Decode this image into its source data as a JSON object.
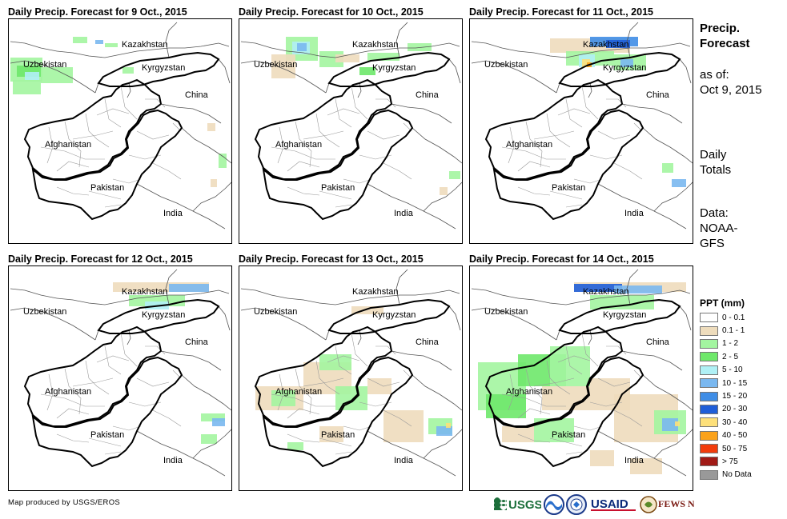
{
  "panels": [
    {
      "title": "Daily Precip. Forecast for 9 Oct., 2015"
    },
    {
      "title": "Daily Precip. Forecast for 10 Oct., 2015"
    },
    {
      "title": "Daily Precip. Forecast for 11 Oct., 2015"
    },
    {
      "title": "Daily Precip. Forecast for 12 Oct., 2015"
    },
    {
      "title": "Daily Precip. Forecast for 13 Oct., 2015"
    },
    {
      "title": "Daily Precip. Forecast for 14 Oct., 2015"
    }
  ],
  "map_labels": {
    "kazakhstan": "Kazakhstan",
    "uzbekistan": "Uzbekistan",
    "kyrgyzstan": "Kyrgyzstan",
    "china": "China",
    "afghanistan": "Afghanistan",
    "pakistan": "Pakistan",
    "india": "India"
  },
  "side_panel": {
    "title_line1": "Precip.",
    "title_line2": "Forecast",
    "asof_line1": "as of:",
    "asof_line2": "Oct 9, 2015",
    "daily_line1": "Daily",
    "daily_line2": "Totals",
    "data_line1": "Data:",
    "data_line2": "NOAA-",
    "data_line3": "GFS"
  },
  "legend": {
    "title": "PPT (mm)",
    "items": [
      {
        "label": "0 - 0.1",
        "color": "#ffffff"
      },
      {
        "label": "0.1 - 1",
        "color": "#eedcbc"
      },
      {
        "label": "1 - 2",
        "color": "#a3f5a0"
      },
      {
        "label": "2 - 5",
        "color": "#6ee86a"
      },
      {
        "label": "5 - 10",
        "color": "#b0f0f5"
      },
      {
        "label": "10 - 15",
        "color": "#7ab8f0"
      },
      {
        "label": "15 - 20",
        "color": "#3f8de6"
      },
      {
        "label": "20 - 30",
        "color": "#1f5ed8"
      },
      {
        "label": "30 - 40",
        "color": "#fde07a"
      },
      {
        "label": "40 - 50",
        "color": "#fba21a"
      },
      {
        "label": "50 - 75",
        "color": "#f23c0c"
      },
      {
        "label": "> 75",
        "color": "#a11a16"
      },
      {
        "label": "No Data",
        "color": "#999999"
      }
    ]
  },
  "footer": {
    "text": "Map produced by USGS/EROS"
  },
  "logos": {
    "usgs": "USGS",
    "usaid": "USAID",
    "fews": "FEWS NET"
  }
}
